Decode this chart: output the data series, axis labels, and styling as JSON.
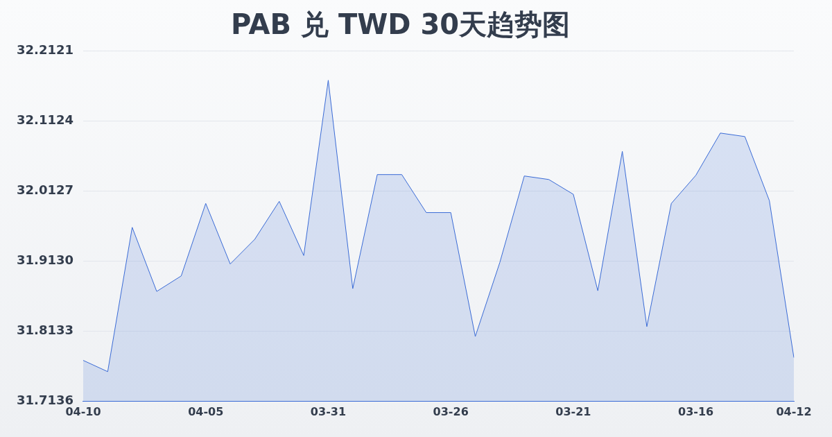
{
  "chart_data": {
    "type": "area",
    "title": "PAB 兑 TWD 30天趋势图",
    "categories": [
      "04-10",
      null,
      null,
      null,
      null,
      "04-05",
      null,
      null,
      null,
      null,
      "03-31",
      null,
      null,
      null,
      null,
      "03-26",
      null,
      null,
      null,
      null,
      "03-21",
      null,
      null,
      null,
      null,
      "03-16",
      null,
      null,
      null,
      "04-12"
    ],
    "series": [
      {
        "color": "#3a6bd6",
        "values": [
          31.772,
          31.756,
          31.961,
          31.87,
          31.892,
          31.995,
          31.909,
          31.944,
          31.998,
          31.921,
          32.17,
          31.874,
          32.036,
          32.036,
          31.982,
          31.982,
          31.806,
          31.911,
          32.034,
          32.029,
          32.008,
          31.871,
          32.069,
          31.82,
          31.995,
          32.035,
          32.095,
          32.09,
          31.999,
          31.776
        ]
      }
    ],
    "ylim": [
      31.7136,
      32.2121
    ],
    "yticks": [
      31.7136,
      31.8133,
      {
        "value": 31.913,
        "label": "31.9130"
      },
      32.0127,
      32.1124,
      32.2121
    ],
    "grid": "y",
    "legend": false,
    "marker": "none",
    "line_style": "solid"
  }
}
